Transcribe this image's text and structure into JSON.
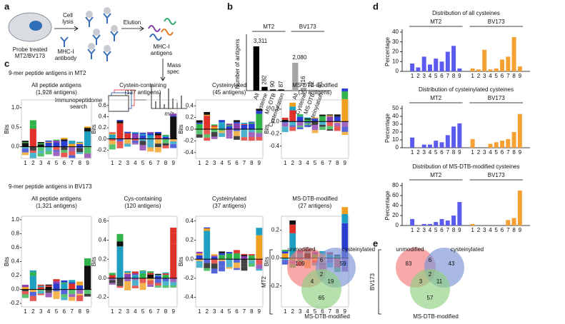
{
  "panel_labels": [
    "a",
    "b",
    "c",
    "d",
    "e"
  ],
  "workflow": {
    "cell": [
      "Probe treated",
      "MT2/BV173"
    ],
    "lysis": [
      "Cell",
      "lysis"
    ],
    "antibody": [
      "MHC-I",
      "antibody"
    ],
    "elution": "Elution",
    "antigens": [
      "MHC-I",
      "antigens"
    ],
    "mass": [
      "Mass",
      "spec"
    ],
    "search": [
      "Immunopeptidome",
      "search"
    ],
    "mz": "m/z"
  },
  "chart_data": [
    {
      "type": "bar",
      "ylabel": "Number of antigens",
      "categories": [
        "All",
        "Cysteine",
        "MS-DTB",
        "Cysteinylation"
      ],
      "ylim": [
        0,
        4000
      ],
      "series": [
        {
          "name": "MT2",
          "color": "#000000",
          "values": [
            3311,
            282,
            90,
            87
          ],
          "value_labels": [
            "3,311",
            "282",
            "90",
            "87"
          ]
        },
        {
          "name": "BV173",
          "color": "#a6a6a6",
          "values": [
            2080,
            216,
            72,
            61
          ],
          "value_labels": [
            "2,080",
            "216",
            "72",
            "61"
          ]
        }
      ]
    },
    {
      "type": "bar",
      "title": "Distribution of all cysteines",
      "ylabel": "Percentage",
      "categories": [
        1,
        2,
        3,
        4,
        5,
        6,
        7,
        8,
        9
      ],
      "ylim": [
        0,
        40
      ],
      "yticks": [
        0,
        10,
        20,
        30,
        40
      ],
      "series": [
        {
          "name": "MT2",
          "color": "#5b5bf0",
          "values": [
            8,
            4,
            15,
            7,
            13,
            10,
            20,
            26,
            3
          ]
        },
        {
          "name": "BV173",
          "color": "#f5a033",
          "values": [
            3,
            2,
            22,
            2,
            3,
            12,
            15,
            35,
            5
          ]
        }
      ]
    },
    {
      "type": "bar",
      "title": "Distribution of cysteinylated cysteines",
      "ylabel": "Percentage",
      "categories": [
        1,
        2,
        3,
        4,
        5,
        6,
        7,
        8,
        9
      ],
      "ylim": [
        0,
        50
      ],
      "yticks": [
        0,
        10,
        20,
        30,
        40,
        50
      ],
      "series": [
        {
          "name": "MT2",
          "color": "#5b5bf0",
          "values": [
            13,
            0,
            4,
            4,
            9,
            7,
            16,
            27,
            31
          ]
        },
        {
          "name": "BV173",
          "color": "#f5a033",
          "values": [
            11,
            0,
            0,
            5,
            7,
            9,
            11,
            20,
            43
          ]
        }
      ]
    },
    {
      "type": "bar",
      "title": "Distribution of MS-DTB-modified cysteines",
      "ylabel": "Percentage",
      "categories": [
        1,
        2,
        3,
        4,
        5,
        6,
        7,
        8,
        9
      ],
      "ylim": [
        0,
        80
      ],
      "yticks": [
        0,
        20,
        40,
        60,
        80
      ],
      "series": [
        {
          "name": "MT2",
          "color": "#5b5bf0",
          "values": [
            13,
            0,
            3,
            3,
            7,
            13,
            10,
            20,
            47
          ]
        },
        {
          "name": "BV173",
          "color": "#f5a033",
          "values": [
            3,
            0,
            0,
            0,
            0,
            0,
            11,
            15,
            70
          ]
        }
      ]
    }
  ],
  "logos": {
    "ylabel": "Bits",
    "positions": [
      1,
      2,
      3,
      4,
      5,
      6,
      7,
      8,
      9
    ],
    "rows": [
      {
        "header": "9-mer peptide antigens in MT2",
        "panels": [
          {
            "title": "All peptide antigens",
            "subtitle": "(1,928 antigens)",
            "ylim": [
              -0.3,
              1.2
            ],
            "yticks": [
              {
                "value": 0,
                "label": "0.0"
              },
              {
                "value": 0.5,
                "label": "0.5"
              },
              {
                "value": 1,
                "label": "1.0"
              }
            ]
          },
          {
            "title": "Cystein-containing",
            "subtitle": "(137 antigens)",
            "ylim": [
              -0.35,
              0.7
            ],
            "yticks": [
              {
                "value": -0.2,
                "label": "-0.2"
              },
              {
                "value": 0,
                "label": "0.0"
              },
              {
                "value": 0.2,
                "label": "0.2"
              },
              {
                "value": 0.4,
                "label": "0.4"
              },
              {
                "value": 0.6,
                "label": "0.6"
              }
            ]
          },
          {
            "title": "Cysteinylated",
            "subtitle": "(45 antigens)",
            "ylim": [
              -0.5,
              0.5
            ],
            "yticks": [
              {
                "value": -0.4,
                "label": "-0.4"
              },
              {
                "value": -0.2,
                "label": "-0.2"
              },
              {
                "value": 0,
                "label": "0.0"
              },
              {
                "value": 0.2,
                "label": "0.2"
              },
              {
                "value": 0.4,
                "label": "0.4"
              }
            ]
          },
          {
            "title": "MS-DTB-modified",
            "subtitle": "(30 antigens)",
            "ylim": [
              -0.6,
              0.35
            ],
            "yticks": [
              {
                "value": -0.4,
                "label": "-0.4"
              },
              {
                "value": -0.2,
                "label": "-0.2"
              },
              {
                "value": 0,
                "label": "0.0"
              },
              {
                "value": 0.2,
                "label": "0.2"
              }
            ]
          }
        ]
      },
      {
        "header": "9-mer peptide antigens in BV173",
        "panels": [
          {
            "title": "All peptide antigens",
            "subtitle": "(1,321 antigens)",
            "ylim": [
              -0.25,
              1.05
            ],
            "yticks": [
              {
                "value": -0.2,
                "label": "-0.2"
              },
              {
                "value": 0,
                "label": "0.0"
              },
              {
                "value": 0.2,
                "label": "0.2"
              },
              {
                "value": 0.4,
                "label": "0.4"
              },
              {
                "value": 0.6,
                "label": "0.6"
              },
              {
                "value": 0.8,
                "label": "0.8"
              },
              {
                "value": 1,
                "label": "1.0"
              }
            ]
          },
          {
            "title": "Cys-containing",
            "subtitle": "(120 antigens)",
            "ylim": [
              -0.3,
              0.65
            ],
            "yticks": [
              {
                "value": -0.2,
                "label": "-0.2"
              },
              {
                "value": 0,
                "label": "0.0"
              },
              {
                "value": 0.2,
                "label": "0.2"
              },
              {
                "value": 0.4,
                "label": "0.4"
              },
              {
                "value": 0.6,
                "label": "0.6"
              }
            ]
          },
          {
            "title": "Cysteinylated",
            "subtitle": "(37 antigens)",
            "ylim": [
              -0.5,
              0.45
            ],
            "yticks": [
              {
                "value": -0.4,
                "label": "-0.4"
              },
              {
                "value": -0.2,
                "label": "-0.2"
              },
              {
                "value": 0,
                "label": "0.0"
              },
              {
                "value": 0.2,
                "label": "0.2"
              },
              {
                "value": 0.4,
                "label": "0.4"
              }
            ]
          },
          {
            "title": "MS-DTB-modified",
            "subtitle": "(27 antigens)",
            "ylim": [
              -0.35,
              0.3
            ],
            "yticks": [
              {
                "value": -0.2,
                "label": "-0.2"
              },
              {
                "value": 0,
                "label": "0.0"
              },
              {
                "value": 0.2,
                "label": "0.2"
              }
            ]
          }
        ]
      }
    ]
  },
  "venn": {
    "sets": [
      "unmodified",
      "cysteinylated",
      "MS-DTB-modified"
    ],
    "diagrams": [
      {
        "name": "MT2",
        "unmodified": 109,
        "cysteinylated": 59,
        "ms_dtb": 65,
        "unmod_cys": 6,
        "unmod_ms": 4,
        "all": 2,
        "cys_ms": 19
      },
      {
        "name": "BV173",
        "unmodified": 83,
        "cysteinylated": 43,
        "ms_dtb": 57,
        "unmod_cys": 6,
        "unmod_ms": 3,
        "all": 2,
        "cys_ms": 11
      }
    ]
  }
}
